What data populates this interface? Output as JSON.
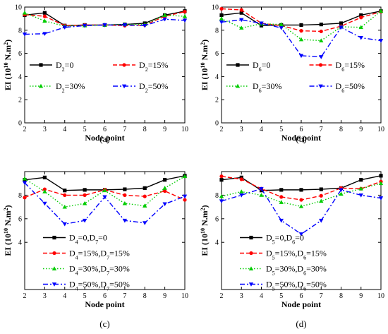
{
  "chart_data": [
    {
      "type": "line",
      "caption": "(a)",
      "xlabel": "Node point",
      "ylabel": "EI (10^10 N.m^2)",
      "x": [
        2,
        3,
        4,
        5,
        6,
        7,
        8,
        9,
        10
      ],
      "xlim": [
        2,
        10
      ],
      "ylim": [
        0,
        10
      ],
      "legend_columns": 2,
      "series": [
        {
          "name": "D2=0",
          "label_parts": [
            [
              "D",
              ""
            ],
            [
              "2",
              "sub"
            ],
            [
              "=0",
              ""
            ]
          ],
          "color": "#000000",
          "dash": "solid",
          "marker": "square",
          "values": [
            9.3,
            9.5,
            8.4,
            8.45,
            8.45,
            8.5,
            8.6,
            9.3,
            9.65
          ]
        },
        {
          "name": "D2=15%",
          "label_parts": [
            [
              "D",
              ""
            ],
            [
              "2",
              "sub"
            ],
            [
              "=15%",
              ""
            ]
          ],
          "color": "#ff0000",
          "dash": "dashed",
          "marker": "circle",
          "values": [
            9.35,
            9.2,
            8.4,
            8.45,
            8.45,
            8.4,
            8.45,
            9.2,
            9.6
          ]
        },
        {
          "name": "D2=30%",
          "label_parts": [
            [
              "D",
              ""
            ],
            [
              "2",
              "sub"
            ],
            [
              "=30%",
              ""
            ]
          ],
          "color": "#00cc00",
          "dash": "dotted",
          "marker": "triangle-up",
          "values": [
            9.5,
            8.8,
            8.35,
            8.4,
            8.45,
            8.5,
            8.5,
            9.3,
            9.2
          ]
        },
        {
          "name": "D2=50%",
          "label_parts": [
            [
              "D",
              ""
            ],
            [
              "2",
              "sub"
            ],
            [
              "=50%",
              ""
            ]
          ],
          "color": "#0000ff",
          "dash": "dashdot",
          "marker": "triangle-down",
          "values": [
            7.65,
            7.7,
            8.25,
            8.4,
            8.45,
            8.45,
            8.4,
            8.95,
            8.85
          ]
        }
      ]
    },
    {
      "type": "line",
      "caption": "(b)",
      "xlabel": "Node point",
      "ylabel": "EI (10^10 N.m^2)",
      "x": [
        2,
        3,
        4,
        5,
        6,
        7,
        8,
        9,
        10
      ],
      "xlim": [
        2,
        10
      ],
      "ylim": [
        0,
        10
      ],
      "legend_columns": 2,
      "series": [
        {
          "name": "D6=0",
          "label_parts": [
            [
              "D",
              ""
            ],
            [
              "6",
              "sub"
            ],
            [
              "=0",
              ""
            ]
          ],
          "color": "#000000",
          "dash": "solid",
          "marker": "square",
          "values": [
            9.3,
            9.5,
            8.4,
            8.45,
            8.45,
            8.5,
            8.6,
            9.3,
            9.65
          ]
        },
        {
          "name": "D6=15%",
          "label_parts": [
            [
              "D",
              ""
            ],
            [
              "6",
              "sub"
            ],
            [
              "=15%",
              ""
            ]
          ],
          "color": "#ff0000",
          "dash": "dashed",
          "marker": "circle",
          "values": [
            9.85,
            9.75,
            8.6,
            8.4,
            7.95,
            7.9,
            8.35,
            9.1,
            9.6
          ]
        },
        {
          "name": "D6=30%",
          "label_parts": [
            [
              "D",
              ""
            ],
            [
              "6",
              "sub"
            ],
            [
              "=30%",
              ""
            ]
          ],
          "color": "#00cc00",
          "dash": "dotted",
          "marker": "triangle-up",
          "values": [
            9.0,
            8.2,
            8.55,
            8.5,
            7.2,
            7.1,
            8.3,
            8.25,
            9.65
          ]
        },
        {
          "name": "D6=50%",
          "label_parts": [
            [
              "D",
              ""
            ],
            [
              "6",
              "sub"
            ],
            [
              "=50%",
              ""
            ]
          ],
          "color": "#0000ff",
          "dash": "dashdot",
          "marker": "triangle-down",
          "values": [
            8.7,
            8.9,
            8.6,
            8.2,
            5.8,
            5.7,
            8.25,
            7.35,
            7.1
          ]
        }
      ]
    },
    {
      "type": "line",
      "caption": "(c)",
      "xlabel": "Node point",
      "ylabel": "EI (10^10 N.m^2)",
      "x": [
        2,
        3,
        4,
        5,
        6,
        7,
        8,
        9,
        10
      ],
      "xlim": [
        2,
        10
      ],
      "ylim": [
        0,
        10
      ],
      "legend_columns": 1,
      "series": [
        {
          "name": "D4=0,D7=0",
          "label_parts": [
            [
              "D",
              ""
            ],
            [
              "4",
              "sub"
            ],
            [
              "=0,D",
              ""
            ],
            [
              "7",
              "sub"
            ],
            [
              "=0",
              ""
            ]
          ],
          "color": "#000000",
          "dash": "solid",
          "marker": "square",
          "values": [
            9.3,
            9.5,
            8.4,
            8.45,
            8.45,
            8.5,
            8.6,
            9.3,
            9.65
          ]
        },
        {
          "name": "D4=15%,D7=15%",
          "label_parts": [
            [
              "D",
              ""
            ],
            [
              "4",
              "sub"
            ],
            [
              "=15%,D",
              ""
            ],
            [
              "7",
              "sub"
            ],
            [
              "=15%",
              ""
            ]
          ],
          "color": "#ff0000",
          "dash": "dashed",
          "marker": "circle",
          "values": [
            7.8,
            8.5,
            8.0,
            8.0,
            8.45,
            8.0,
            7.9,
            8.35,
            7.6
          ]
        },
        {
          "name": "D4=30%,D7=30%",
          "label_parts": [
            [
              "D",
              ""
            ],
            [
              "4",
              "sub"
            ],
            [
              "=30%,D",
              ""
            ],
            [
              "7",
              "sub"
            ],
            [
              "=30%",
              ""
            ]
          ],
          "color": "#00cc00",
          "dash": "dotted",
          "marker": "triangle-up",
          "values": [
            9.4,
            8.3,
            7.0,
            7.3,
            8.4,
            7.3,
            7.1,
            8.6,
            9.6
          ]
        },
        {
          "name": "D4=50%,D7=50%",
          "label_parts": [
            [
              "D",
              ""
            ],
            [
              "4",
              "sub"
            ],
            [
              "=50%,D",
              ""
            ],
            [
              "7",
              "sub"
            ],
            [
              "=50%",
              ""
            ]
          ],
          "color": "#0000ff",
          "dash": "dashdot",
          "marker": "triangle-down",
          "values": [
            9.05,
            7.3,
            5.55,
            5.85,
            7.85,
            5.85,
            5.65,
            7.25,
            7.9
          ]
        }
      ]
    },
    {
      "type": "line",
      "caption": "(d)",
      "xlabel": "Node point",
      "ylabel": "EI (10^10 N.m^2)",
      "x": [
        2,
        3,
        4,
        5,
        6,
        7,
        8,
        9,
        10
      ],
      "xlim": [
        2,
        10
      ],
      "ylim": [
        0,
        10
      ],
      "legend_columns": 1,
      "series": [
        {
          "name": "D5=0,D6=0",
          "label_parts": [
            [
              "D",
              ""
            ],
            [
              "5",
              "sub"
            ],
            [
              "=0,D",
              ""
            ],
            [
              "6",
              "sub"
            ],
            [
              "=0",
              ""
            ]
          ],
          "color": "#000000",
          "dash": "solid",
          "marker": "square",
          "values": [
            9.3,
            9.5,
            8.4,
            8.45,
            8.45,
            8.5,
            8.6,
            9.3,
            9.65
          ]
        },
        {
          "name": "D5=15%,D6=15%",
          "label_parts": [
            [
              "D",
              ""
            ],
            [
              "5",
              "sub"
            ],
            [
              "=15%,D",
              ""
            ],
            [
              "6",
              "sub"
            ],
            [
              "=15%",
              ""
            ]
          ],
          "color": "#ff0000",
          "dash": "dashed",
          "marker": "circle",
          "values": [
            9.6,
            9.35,
            8.55,
            7.85,
            7.6,
            7.95,
            8.6,
            8.55,
            9.15
          ]
        },
        {
          "name": "D5=30%,D6=30%",
          "label_parts": [
            [
              "D",
              ""
            ],
            [
              "5",
              "sub"
            ],
            [
              "=30%,D",
              ""
            ],
            [
              "6",
              "sub"
            ],
            [
              "=30%",
              ""
            ]
          ],
          "color": "#00cc00",
          "dash": "dotted",
          "marker": "triangle-up",
          "values": [
            7.9,
            8.3,
            8.0,
            7.4,
            7.05,
            7.5,
            8.1,
            8.55,
            9.0
          ]
        },
        {
          "name": "D5=50%,D6=50%",
          "label_parts": [
            [
              "D",
              ""
            ],
            [
              "5",
              "sub"
            ],
            [
              "=50%,D",
              ""
            ],
            [
              "6",
              "sub"
            ],
            [
              "=50%",
              ""
            ]
          ],
          "color": "#0000ff",
          "dash": "dashdot",
          "marker": "triangle-down",
          "values": [
            7.5,
            8.0,
            8.55,
            5.85,
            4.7,
            5.85,
            8.45,
            8.0,
            7.75
          ]
        }
      ]
    }
  ]
}
